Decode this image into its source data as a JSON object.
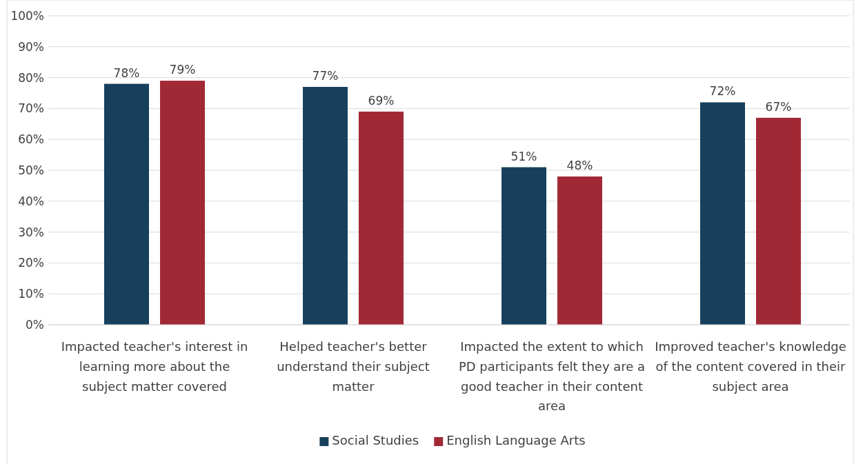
{
  "chart_data": {
    "type": "bar",
    "categories": [
      "Impacted teacher's interest in learning more about the subject matter covered",
      "Helped teacher's better understand their subject matter",
      "Impacted the extent to which PD participants felt they are a good teacher in their content area",
      "Improved teacher's knowledge of the content covered in their subject area"
    ],
    "series": [
      {
        "name": "Social Studies",
        "color": "#17405c",
        "values": [
          78,
          77,
          51,
          72
        ],
        "value_labels": [
          "78%",
          "77%",
          "51%",
          "72%"
        ]
      },
      {
        "name": "English Language Arts",
        "color": "#a12935",
        "values": [
          79,
          69,
          48,
          67
        ],
        "value_labels": [
          "79%",
          "69%",
          "48%",
          "67%"
        ]
      }
    ],
    "ylim": [
      0,
      100
    ],
    "yticks": [
      {
        "value": 0,
        "label": "0%"
      },
      {
        "value": 10,
        "label": "10%"
      },
      {
        "value": 20,
        "label": "20%"
      },
      {
        "value": 30,
        "label": "30%"
      },
      {
        "value": 40,
        "label": "40%"
      },
      {
        "value": 50,
        "label": "50%"
      },
      {
        "value": 60,
        "label": "60%"
      },
      {
        "value": 70,
        "label": "70%"
      },
      {
        "value": 80,
        "label": "80%"
      },
      {
        "value": 90,
        "label": "90%"
      },
      {
        "value": 100,
        "label": "100%"
      }
    ],
    "grid": "y",
    "legend": "bottom"
  }
}
